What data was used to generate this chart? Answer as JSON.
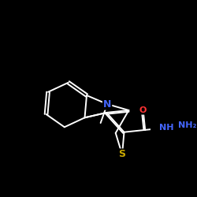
{
  "bg_color": "#000000",
  "bond_color": "#ffffff",
  "bond_width": 1.4,
  "dbo": 0.07,
  "font_size": 8,
  "figsize": [
    2.5,
    2.5
  ],
  "dpi": 100,
  "atom_colors": {
    "N": "#4466ff",
    "S": "#ccaa00",
    "O": "#ff3333",
    "C": "#ffffff",
    "H": "#ffffff"
  }
}
